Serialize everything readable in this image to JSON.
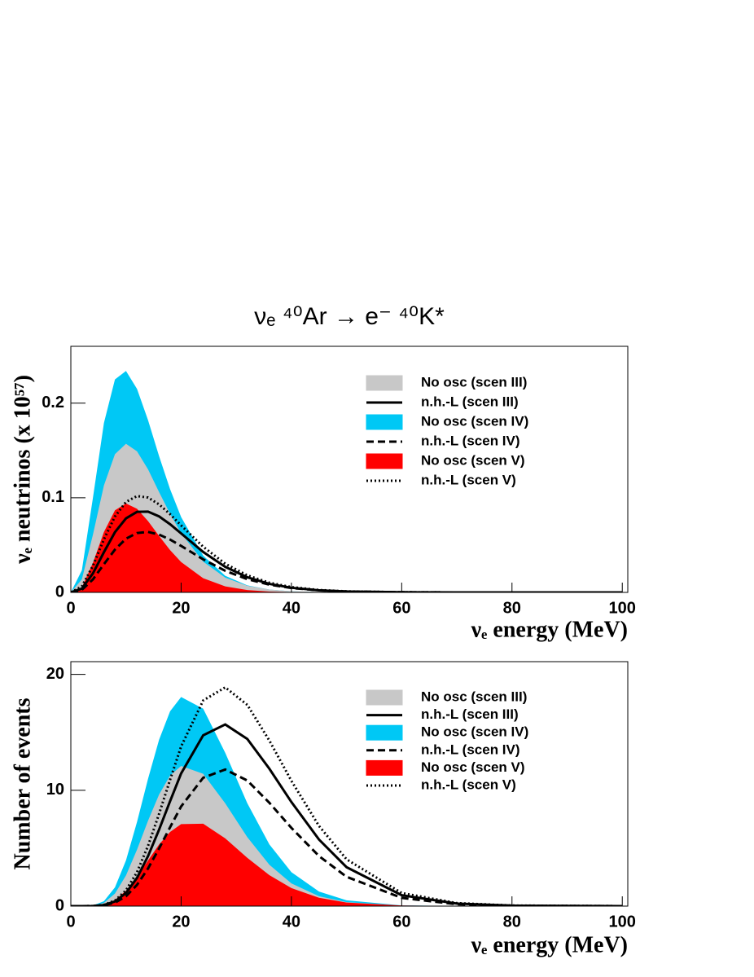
{
  "chart_data": [
    {
      "type": "line",
      "title": "νₑ ⁴⁰Ar → e⁻ ⁴⁰K*",
      "x_label": "νₑ energy (MeV)",
      "y_label": "νₑ neutrinos (x 10⁵⁷)",
      "x": [
        0,
        2,
        4,
        6,
        8,
        10,
        12,
        14,
        16,
        18,
        20,
        24,
        28,
        32,
        36,
        40,
        45,
        50,
        60,
        70,
        80,
        100
      ],
      "series": [
        {
          "name": "No osc (scen III)",
          "color": "#c8c8c8",
          "fill": true,
          "values": [
            0,
            0.0138,
            0.0608,
            0.113,
            0.146,
            0.157,
            0.149,
            0.13,
            0.106,
            0.083,
            0.0625,
            0.0325,
            0.0156,
            0.007,
            0.003,
            0.0012,
            0.0004,
            0.0001,
            0,
            0,
            0,
            0
          ]
        },
        {
          "name": "n.h.-L (scen III)",
          "color": "#000000",
          "dash": "solid",
          "values": [
            0,
            0.004,
            0.02,
            0.0425,
            0.0636,
            0.0782,
            0.0851,
            0.0853,
            0.0803,
            0.072,
            0.0623,
            0.0427,
            0.027,
            0.016,
            0.009,
            0.0049,
            0.0022,
            0.001,
            0.0002,
            0,
            0,
            0
          ]
        },
        {
          "name": "No osc (scen IV)",
          "color": "#00c8f5",
          "fill": true,
          "values": [
            0,
            0.0234,
            0.0997,
            0.179,
            0.225,
            0.234,
            0.215,
            0.182,
            0.144,
            0.109,
            0.0796,
            0.0389,
            0.0175,
            0.0074,
            0.003,
            0.0012,
            0.0003,
            0.0001,
            0,
            0,
            0,
            0
          ]
        },
        {
          "name": "n.h.-L (scen IV)",
          "color": "#000000",
          "dash": "dashed",
          "values": [
            0,
            0.0027,
            0.0137,
            0.0298,
            0.0452,
            0.0567,
            0.0627,
            0.0639,
            0.0611,
            0.0558,
            0.0491,
            0.0349,
            0.0228,
            0.014,
            0.0082,
            0.0046,
            0.0022,
            0.001,
            0.0002,
            0,
            0,
            0
          ]
        },
        {
          "name": "No osc (scen V)",
          "color": "#ff0000",
          "fill": true,
          "values": [
            0,
            0.0055,
            0.0311,
            0.0638,
            0.0867,
            0.094,
            0.0884,
            0.0753,
            0.0596,
            0.0447,
            0.0321,
            0.015,
            0.0063,
            0.0025,
            0.0009,
            0.0003,
            0.0001,
            0,
            0,
            0,
            0,
            0
          ]
        },
        {
          "name": "n.h.-L (scen V)",
          "color": "#000000",
          "dash": "dotted",
          "values": [
            0,
            0.0063,
            0.0281,
            0.056,
            0.0802,
            0.0956,
            0.1018,
            0.1002,
            0.093,
            0.0826,
            0.0708,
            0.0482,
            0.0303,
            0.018,
            0.0102,
            0.0056,
            0.0025,
            0.0011,
            0.0002,
            0,
            0,
            0
          ]
        }
      ],
      "xlim": [
        0,
        101
      ],
      "ylim": [
        0,
        0.26
      ],
      "xticks": [
        0,
        20,
        40,
        60,
        80,
        100
      ],
      "yticks": [
        0,
        0.1,
        0.2
      ],
      "grid": false,
      "legend": "top right"
    },
    {
      "type": "line",
      "x_label": "νₑ energy (MeV)",
      "y_label": "Number of events",
      "x": [
        0,
        2,
        4,
        6,
        8,
        10,
        12,
        14,
        16,
        18,
        20,
        24,
        28,
        32,
        36,
        40,
        45,
        50,
        60,
        70,
        80,
        100
      ],
      "series": [
        {
          "name": "No osc (scen III)",
          "color": "#c8c8c8",
          "fill": true,
          "values": [
            0,
            0,
            0.03,
            0.28,
            1.08,
            2.65,
            4.87,
            7.37,
            9.63,
            11.27,
            12.1,
            11.42,
            8.87,
            5.95,
            3.57,
            1.96,
            0.85,
            0.34,
            0.04,
            0,
            0,
            0
          ]
        },
        {
          "name": "n.h.-L (scen III)",
          "color": "#000000",
          "dash": "solid",
          "values": [
            0,
            0,
            0.01,
            0.09,
            0.4,
            1.13,
            2.44,
            4.32,
            6.6,
            9.06,
            11.45,
            14.74,
            15.68,
            14.43,
            11.86,
            8.98,
            5.75,
            3.36,
            0.94,
            0.22,
            0.04,
            0
          ]
        },
        {
          "name": "No osc (scen IV)",
          "color": "#00c8f5",
          "fill": true,
          "values": [
            0,
            0,
            0.05,
            0.42,
            1.62,
            3.95,
            7.26,
            10.99,
            14.36,
            16.82,
            18.05,
            17.04,
            13.23,
            8.88,
            5.33,
            2.93,
            1.26,
            0.5,
            0.06,
            0.01,
            0,
            0
          ]
        },
        {
          "name": "n.h.-L (scen IV)",
          "color": "#000000",
          "dash": "dashed",
          "values": [
            0,
            0,
            0.01,
            0.07,
            0.3,
            0.85,
            1.83,
            3.25,
            4.97,
            6.81,
            8.6,
            11.08,
            11.79,
            10.84,
            8.92,
            6.75,
            4.32,
            2.53,
            0.71,
            0.16,
            0.03,
            0
          ]
        },
        {
          "name": "No osc (scen V)",
          "color": "#ff0000",
          "fill": true,
          "values": [
            0,
            0,
            0.01,
            0.13,
            0.53,
            1.33,
            2.53,
            3.94,
            5.32,
            6.4,
            7.08,
            7.11,
            5.85,
            4.17,
            2.67,
            1.56,
            0.72,
            0.31,
            0.05,
            0.01,
            0,
            0
          ]
        },
        {
          "name": "n.h.-L (scen V)",
          "color": "#000000",
          "dash": "dotted",
          "values": [
            0,
            0,
            0.01,
            0.11,
            0.48,
            1.36,
            2.93,
            5.2,
            7.96,
            10.91,
            13.78,
            17.75,
            18.88,
            17.37,
            14.29,
            10.81,
            6.92,
            4.04,
            1.13,
            0.26,
            0.05,
            0
          ]
        }
      ],
      "xlim": [
        0,
        101
      ],
      "ylim": [
        0,
        21.1
      ],
      "xticks": [
        0,
        20,
        40,
        60,
        80,
        100
      ],
      "yticks": [
        0,
        10,
        20
      ],
      "grid": false,
      "legend": "top right"
    }
  ]
}
